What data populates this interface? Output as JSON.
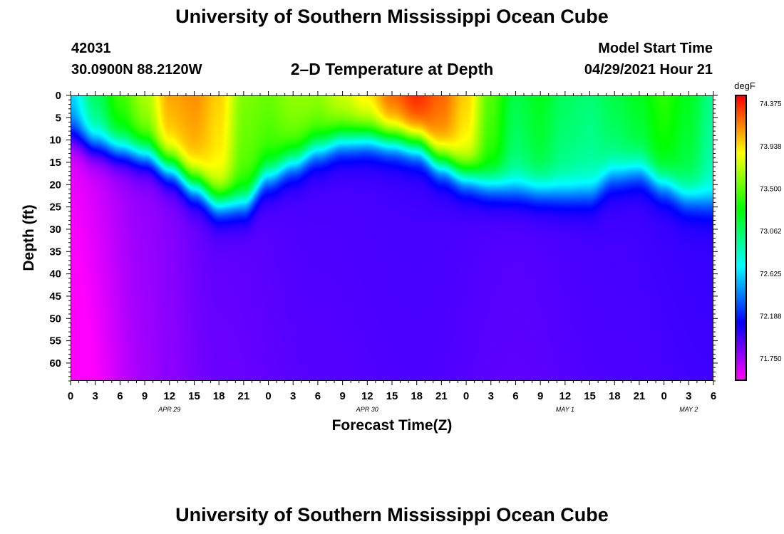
{
  "header": {
    "title": "University of Southern Mississippi Ocean Cube",
    "station_id": "42031",
    "location": "30.0900N  88.2120W",
    "plot_title": "2–D Temperature at Depth",
    "model_start_label": "Model Start Time",
    "model_start_value": "04/29/2021 Hour 21"
  },
  "footer": {
    "title": "University of Southern Mississippi Ocean Cube"
  },
  "chart_data": {
    "type": "heatmap",
    "title": "2–D Temperature at Depth",
    "xlabel": "Forecast Time(Z)",
    "ylabel": "Depth (ft)",
    "x_ticks": [
      "0",
      "3",
      "6",
      "9",
      "12",
      "15",
      "18",
      "21",
      "0",
      "3",
      "6",
      "9",
      "12",
      "15",
      "18",
      "21",
      "0",
      "3",
      "6",
      "9",
      "12",
      "15",
      "18",
      "21",
      "0",
      "3",
      "6"
    ],
    "x_tick_hours": [
      0,
      3,
      6,
      9,
      12,
      15,
      18,
      21,
      24,
      27,
      30,
      33,
      36,
      39,
      42,
      45,
      48,
      51,
      54,
      57,
      60,
      63,
      66,
      69,
      72,
      75,
      78
    ],
    "xlim_hours": [
      0,
      78
    ],
    "date_labels": [
      {
        "text": "APR 29",
        "hour": 12
      },
      {
        "text": "APR 30",
        "hour": 36
      },
      {
        "text": "MAY 1",
        "hour": 60
      },
      {
        "text": "MAY 2",
        "hour": 75
      }
    ],
    "y_ticks": [
      0,
      5,
      10,
      15,
      20,
      25,
      30,
      35,
      40,
      45,
      50,
      55,
      60
    ],
    "ylim": [
      0,
      64
    ],
    "y_inverted": true,
    "colorbar": {
      "unit": "degF",
      "ticks": [
        "74.375",
        "73.938",
        "73.500",
        "73.062",
        "72.625",
        "72.188",
        "71.750"
      ],
      "range": [
        71.53,
        74.45
      ]
    },
    "thermocline_depth_ft": [
      [
        0,
        9
      ],
      [
        3,
        11
      ],
      [
        6,
        12
      ],
      [
        9,
        13
      ],
      [
        12,
        16
      ],
      [
        15,
        20
      ],
      [
        18,
        24
      ],
      [
        21,
        24
      ],
      [
        24,
        18
      ],
      [
        27,
        15
      ],
      [
        30,
        12
      ],
      [
        33,
        10
      ],
      [
        36,
        9.5
      ],
      [
        39,
        10
      ],
      [
        42,
        11
      ],
      [
        45,
        15
      ],
      [
        48,
        18
      ],
      [
        51,
        20
      ],
      [
        54,
        21
      ],
      [
        57,
        21.5
      ],
      [
        60,
        22
      ],
      [
        63,
        22
      ],
      [
        66,
        18
      ],
      [
        69,
        17
      ],
      [
        72,
        20
      ],
      [
        75,
        23
      ],
      [
        78,
        24
      ]
    ],
    "surface_temperature_degF": [
      [
        0,
        72.6
      ],
      [
        3,
        73.05
      ],
      [
        6,
        73.4
      ],
      [
        9,
        73.65
      ],
      [
        12,
        74.05
      ],
      [
        15,
        74.1
      ],
      [
        18,
        73.95
      ],
      [
        21,
        73.55
      ],
      [
        24,
        73.5
      ],
      [
        27,
        73.6
      ],
      [
        30,
        73.6
      ],
      [
        33,
        73.75
      ],
      [
        36,
        73.9
      ],
      [
        39,
        74.2
      ],
      [
        42,
        74.35
      ],
      [
        45,
        74.2
      ],
      [
        48,
        73.95
      ],
      [
        51,
        73.45
      ],
      [
        54,
        73.1
      ],
      [
        57,
        73.2
      ],
      [
        60,
        73.05
      ],
      [
        63,
        73.0
      ],
      [
        66,
        73.1
      ],
      [
        69,
        73.2
      ],
      [
        72,
        73.35
      ],
      [
        75,
        73.2
      ],
      [
        78,
        72.95
      ]
    ],
    "deep_temperature_degF": [
      [
        0,
        71.6
      ],
      [
        9,
        71.78
      ],
      [
        18,
        71.9
      ],
      [
        30,
        71.95
      ],
      [
        42,
        71.97
      ],
      [
        54,
        71.93
      ],
      [
        66,
        71.97
      ],
      [
        78,
        72.0
      ]
    ]
  }
}
